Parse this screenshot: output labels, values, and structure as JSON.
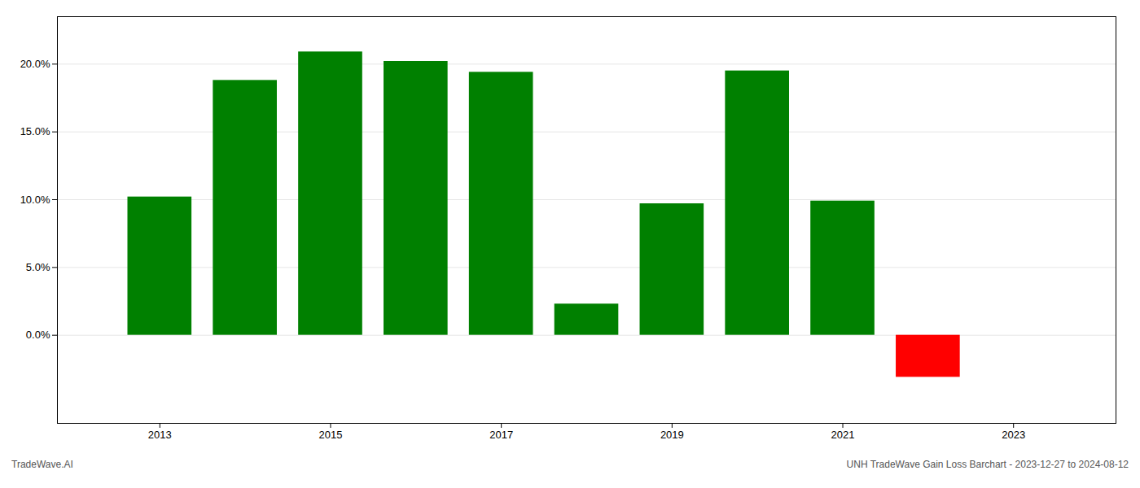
{
  "chart_data": {
    "type": "bar",
    "x": [
      2013,
      2014,
      2015,
      2016,
      2017,
      2018,
      2019,
      2020,
      2021,
      2022
    ],
    "values": [
      0.102,
      0.188,
      0.209,
      0.202,
      0.194,
      0.023,
      0.097,
      0.195,
      0.099,
      -0.031
    ],
    "colors": [
      "#008000",
      "#008000",
      "#008000",
      "#008000",
      "#008000",
      "#008000",
      "#008000",
      "#008000",
      "#008000",
      "#ff0000"
    ],
    "xlim": [
      2011.8,
      2024.2
    ],
    "xticks": [
      2013,
      2015,
      2017,
      2019,
      2021,
      2023
    ],
    "ylim": [
      -0.065,
      0.235
    ],
    "yticks": [
      {
        "value": 0.0,
        "label": "0.0%"
      },
      {
        "value": 0.05,
        "label": "5.0%"
      },
      {
        "value": 0.1,
        "label": "10.0%"
      },
      {
        "value": 0.15,
        "label": "15.0%"
      },
      {
        "value": 0.2,
        "label": "20.0%"
      }
    ],
    "grid": true,
    "annotations": [
      "TradeWave.AI",
      "UNH TradeWave Gain Loss Barchart - 2023-12-27 to 2024-08-12"
    ]
  }
}
